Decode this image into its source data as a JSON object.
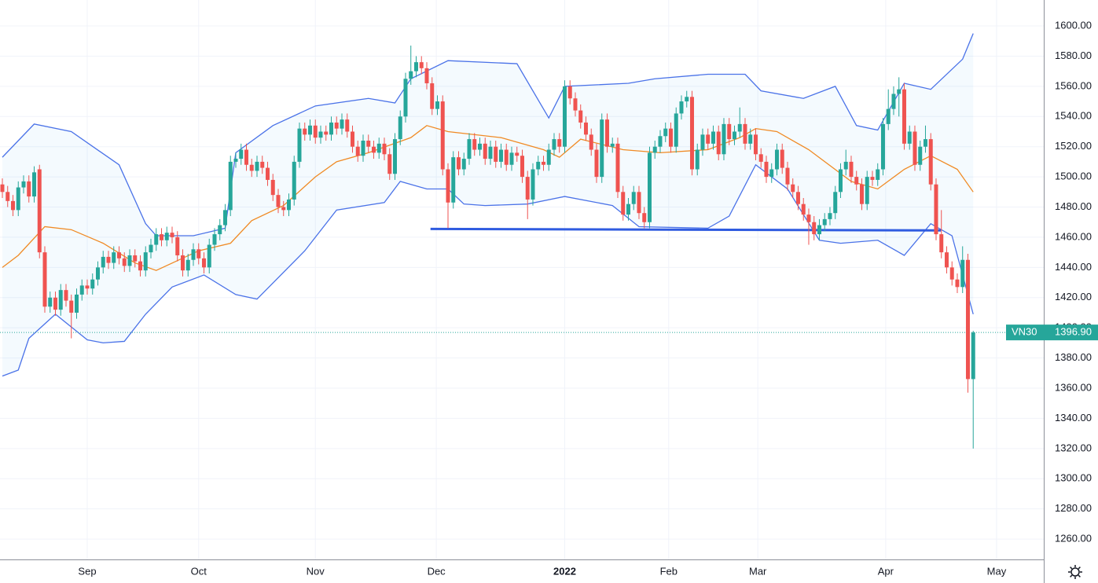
{
  "chart_data": {
    "type": "candlestick",
    "symbol": "VN30",
    "last_price": {
      "value": 1396.9,
      "label": "1396.90"
    },
    "up_color": "#26a69a",
    "down_color": "#ef5350",
    "band_color": "#4a72e8",
    "basis_color": "#f08a24",
    "band_fill": "rgba(33,150,243,0.05)",
    "support_color": "#2f5be0",
    "grid": true,
    "xlim": [
      -0.444,
      196.3
    ],
    "ylim": [
      1246.5,
      1617.2
    ],
    "xticks": [
      {
        "value": 16,
        "label": "Sep"
      },
      {
        "value": 37,
        "label": "Oct"
      },
      {
        "value": 59,
        "label": "Nov"
      },
      {
        "value": 81.8,
        "label": "Dec"
      },
      {
        "value": 106,
        "label": "2022",
        "bold": true
      },
      {
        "value": 125.6,
        "label": "Feb"
      },
      {
        "value": 142.4,
        "label": "Mar"
      },
      {
        "value": 166.5,
        "label": "Apr"
      },
      {
        "value": 187.4,
        "label": "May"
      }
    ],
    "yticks": [
      {
        "value": 1260,
        "label": "1260.00"
      },
      {
        "value": 1280,
        "label": "1280.00"
      },
      {
        "value": 1300,
        "label": "1300.00"
      },
      {
        "value": 1320,
        "label": "1320.00"
      },
      {
        "value": 1340,
        "label": "1340.00"
      },
      {
        "value": 1360,
        "label": "1360.00"
      },
      {
        "value": 1380,
        "label": "1380.00"
      },
      {
        "value": 1400,
        "label": "1400.00"
      },
      {
        "value": 1420,
        "label": "1420.00"
      },
      {
        "value": 1440,
        "label": "1440.00"
      },
      {
        "value": 1460,
        "label": "1460.00"
      },
      {
        "value": 1480,
        "label": "1480.00"
      },
      {
        "value": 1500,
        "label": "1500.00"
      },
      {
        "value": 1520,
        "label": "1520.00"
      },
      {
        "value": 1540,
        "label": "1540.00"
      },
      {
        "value": 1560,
        "label": "1560.00"
      },
      {
        "value": 1580,
        "label": "1580.00"
      },
      {
        "value": 1600,
        "label": "1600.00"
      }
    ],
    "support_line": {
      "x": [
        80.7,
        176.9
      ],
      "values": [
        1465.5,
        1464.5
      ]
    },
    "ohlc": [
      [
        1495,
        1499,
        1486,
        1490
      ],
      [
        1490,
        1494,
        1480,
        1484
      ],
      [
        1484,
        1488,
        1474,
        1478
      ],
      [
        1478,
        1497,
        1474,
        1493
      ],
      [
        1493,
        1501,
        1489,
        1497
      ],
      [
        1497,
        1501,
        1483,
        1487
      ],
      [
        1487,
        1507,
        1483,
        1503
      ],
      [
        1505,
        1508,
        1446,
        1450
      ],
      [
        1450,
        1454,
        1410,
        1414
      ],
      [
        1414,
        1424,
        1410,
        1420
      ],
      [
        1420,
        1424,
        1408,
        1412
      ],
      [
        1412,
        1429,
        1408,
        1425
      ],
      [
        1425,
        1429,
        1414,
        1418
      ],
      [
        1418,
        1422,
        1393,
        1410
      ],
      [
        1410,
        1426,
        1406,
        1422
      ],
      [
        1422,
        1432,
        1418,
        1428
      ],
      [
        1428,
        1432,
        1422,
        1426
      ],
      [
        1426,
        1436,
        1422,
        1432
      ],
      [
        1432,
        1444,
        1428,
        1440
      ],
      [
        1440,
        1451,
        1436,
        1447
      ],
      [
        1447,
        1451,
        1439,
        1443
      ],
      [
        1443,
        1454,
        1439,
        1450
      ],
      [
        1450,
        1454,
        1442,
        1446
      ],
      [
        1446,
        1450,
        1437,
        1441
      ],
      [
        1441,
        1452,
        1437,
        1448
      ],
      [
        1448,
        1452,
        1440,
        1444
      ],
      [
        1444,
        1448,
        1434,
        1438
      ],
      [
        1438,
        1454,
        1434,
        1450
      ],
      [
        1450,
        1459,
        1446,
        1455
      ],
      [
        1455,
        1466,
        1451,
        1462
      ],
      [
        1462,
        1466,
        1454,
        1458
      ],
      [
        1458,
        1467,
        1454,
        1463
      ],
      [
        1463,
        1467,
        1456,
        1460
      ],
      [
        1460,
        1464,
        1444,
        1448
      ],
      [
        1448,
        1452,
        1434,
        1438
      ],
      [
        1438,
        1449,
        1434,
        1445
      ],
      [
        1445,
        1456,
        1441,
        1452
      ],
      [
        1452,
        1456,
        1442,
        1446
      ],
      [
        1446,
        1450,
        1436,
        1440
      ],
      [
        1440,
        1459,
        1436,
        1455
      ],
      [
        1455,
        1466,
        1451,
        1462
      ],
      [
        1462,
        1472,
        1458,
        1468
      ],
      [
        1468,
        1482,
        1464,
        1478
      ],
      [
        1478,
        1514,
        1474,
        1510
      ],
      [
        1510,
        1516,
        1506,
        1512
      ],
      [
        1512,
        1522,
        1508,
        1518
      ],
      [
        1518,
        1522,
        1504,
        1508
      ],
      [
        1508,
        1512,
        1500,
        1504
      ],
      [
        1504,
        1514,
        1500,
        1510
      ],
      [
        1510,
        1514,
        1502,
        1506
      ],
      [
        1506,
        1510,
        1494,
        1498
      ],
      [
        1498,
        1502,
        1484,
        1488
      ],
      [
        1488,
        1492,
        1476,
        1480
      ],
      [
        1480,
        1484,
        1474,
        1478
      ],
      [
        1478,
        1489,
        1474,
        1485
      ],
      [
        1485,
        1514,
        1481,
        1510
      ],
      [
        1510,
        1536,
        1506,
        1532
      ],
      [
        1532,
        1536,
        1524,
        1528
      ],
      [
        1528,
        1538,
        1524,
        1534
      ],
      [
        1534,
        1538,
        1522,
        1526
      ],
      [
        1526,
        1534,
        1522,
        1530
      ],
      [
        1530,
        1534,
        1524,
        1528
      ],
      [
        1528,
        1540,
        1524,
        1536
      ],
      [
        1536,
        1540,
        1528,
        1532
      ],
      [
        1532,
        1542,
        1528,
        1538
      ],
      [
        1538,
        1542,
        1526,
        1530
      ],
      [
        1530,
        1534,
        1516,
        1520
      ],
      [
        1520,
        1524,
        1510,
        1514
      ],
      [
        1514,
        1528,
        1510,
        1524
      ],
      [
        1524,
        1528,
        1516,
        1520
      ],
      [
        1520,
        1524,
        1512,
        1516
      ],
      [
        1516,
        1526,
        1512,
        1522
      ],
      [
        1522,
        1526,
        1511,
        1515
      ],
      [
        1515,
        1519,
        1498,
        1502
      ],
      [
        1502,
        1529,
        1498,
        1525
      ],
      [
        1525,
        1544,
        1521,
        1540
      ],
      [
        1540,
        1569,
        1536,
        1565
      ],
      [
        1565,
        1587,
        1561,
        1570
      ],
      [
        1570,
        1580,
        1566,
        1576
      ],
      [
        1576,
        1580,
        1568,
        1572
      ],
      [
        1572,
        1576,
        1558,
        1562
      ],
      [
        1562,
        1566,
        1541,
        1545
      ],
      [
        1545,
        1554,
        1541,
        1550
      ],
      [
        1550,
        1554,
        1501,
        1505
      ],
      [
        1505,
        1509,
        1466,
        1483
      ],
      [
        1483,
        1517,
        1479,
        1513
      ],
      [
        1513,
        1517,
        1501,
        1505
      ],
      [
        1505,
        1516,
        1501,
        1512
      ],
      [
        1512,
        1529,
        1508,
        1525
      ],
      [
        1525,
        1529,
        1514,
        1518
      ],
      [
        1518,
        1526,
        1514,
        1522
      ],
      [
        1522,
        1526,
        1508,
        1512
      ],
      [
        1512,
        1524,
        1508,
        1520
      ],
      [
        1520,
        1524,
        1506,
        1510
      ],
      [
        1510,
        1522,
        1506,
        1518
      ],
      [
        1518,
        1522,
        1504,
        1508
      ],
      [
        1508,
        1520,
        1504,
        1516
      ],
      [
        1516,
        1520,
        1510,
        1514
      ],
      [
        1514,
        1518,
        1496,
        1500
      ],
      [
        1500,
        1504,
        1472,
        1485
      ],
      [
        1485,
        1509,
        1481,
        1505
      ],
      [
        1505,
        1514,
        1501,
        1510
      ],
      [
        1510,
        1514,
        1504,
        1508
      ],
      [
        1508,
        1522,
        1504,
        1518
      ],
      [
        1518,
        1529,
        1514,
        1525
      ],
      [
        1525,
        1529,
        1516,
        1520
      ],
      [
        1520,
        1564,
        1516,
        1560
      ],
      [
        1560,
        1564,
        1548,
        1552
      ],
      [
        1552,
        1556,
        1540,
        1544
      ],
      [
        1544,
        1548,
        1532,
        1536
      ],
      [
        1536,
        1540,
        1524,
        1528
      ],
      [
        1528,
        1532,
        1514,
        1518
      ],
      [
        1518,
        1522,
        1496,
        1500
      ],
      [
        1500,
        1542,
        1496,
        1538
      ],
      [
        1538,
        1542,
        1516,
        1520
      ],
      [
        1520,
        1526,
        1516,
        1522
      ],
      [
        1522,
        1526,
        1486,
        1490
      ],
      [
        1490,
        1494,
        1471,
        1475
      ],
      [
        1475,
        1486,
        1471,
        1482
      ],
      [
        1482,
        1494,
        1478,
        1490
      ],
      [
        1490,
        1494,
        1472,
        1476
      ],
      [
        1476,
        1480,
        1466,
        1470
      ],
      [
        1470,
        1520,
        1466,
        1516
      ],
      [
        1516,
        1524,
        1512,
        1520
      ],
      [
        1520,
        1531,
        1516,
        1527
      ],
      [
        1527,
        1536,
        1523,
        1532
      ],
      [
        1532,
        1536,
        1516,
        1520
      ],
      [
        1520,
        1546,
        1516,
        1542
      ],
      [
        1542,
        1554,
        1538,
        1550
      ],
      [
        1550,
        1557,
        1546,
        1553
      ],
      [
        1553,
        1557,
        1501,
        1505
      ],
      [
        1505,
        1522,
        1501,
        1518
      ],
      [
        1518,
        1532,
        1514,
        1528
      ],
      [
        1528,
        1532,
        1518,
        1522
      ],
      [
        1522,
        1534,
        1518,
        1530
      ],
      [
        1530,
        1534,
        1511,
        1515
      ],
      [
        1515,
        1539,
        1511,
        1535
      ],
      [
        1535,
        1539,
        1521,
        1525
      ],
      [
        1525,
        1534,
        1521,
        1530
      ],
      [
        1530,
        1546,
        1526,
        1535
      ],
      [
        1535,
        1539,
        1518,
        1522
      ],
      [
        1522,
        1532,
        1518,
        1528
      ],
      [
        1528,
        1532,
        1511,
        1515
      ],
      [
        1515,
        1519,
        1506,
        1510
      ],
      [
        1510,
        1514,
        1496,
        1500
      ],
      [
        1500,
        1509,
        1496,
        1505
      ],
      [
        1505,
        1522,
        1501,
        1518
      ],
      [
        1518,
        1522,
        1502,
        1506
      ],
      [
        1506,
        1510,
        1491,
        1495
      ],
      [
        1495,
        1499,
        1486,
        1490
      ],
      [
        1490,
        1494,
        1478,
        1482
      ],
      [
        1482,
        1486,
        1471,
        1475
      ],
      [
        1475,
        1479,
        1455,
        1470
      ],
      [
        1470,
        1474,
        1458,
        1462
      ],
      [
        1462,
        1472,
        1458,
        1468
      ],
      [
        1468,
        1476,
        1464,
        1472
      ],
      [
        1472,
        1480,
        1468,
        1476
      ],
      [
        1476,
        1494,
        1472,
        1490
      ],
      [
        1490,
        1509,
        1486,
        1505
      ],
      [
        1505,
        1518,
        1501,
        1510
      ],
      [
        1510,
        1514,
        1496,
        1500
      ],
      [
        1500,
        1504,
        1491,
        1495
      ],
      [
        1495,
        1499,
        1478,
        1482
      ],
      [
        1482,
        1504,
        1478,
        1500
      ],
      [
        1500,
        1504,
        1494,
        1498
      ],
      [
        1498,
        1509,
        1494,
        1505
      ],
      [
        1505,
        1539,
        1501,
        1535
      ],
      [
        1535,
        1558,
        1531,
        1545
      ],
      [
        1545,
        1560,
        1541,
        1555
      ],
      [
        1555,
        1566,
        1540,
        1558
      ],
      [
        1558,
        1562,
        1518,
        1522
      ],
      [
        1522,
        1534,
        1518,
        1530
      ],
      [
        1530,
        1534,
        1504,
        1508
      ],
      [
        1508,
        1524,
        1504,
        1520
      ],
      [
        1520,
        1534,
        1516,
        1525
      ],
      [
        1525,
        1529,
        1491,
        1495
      ],
      [
        1495,
        1499,
        1458,
        1462
      ],
      [
        1462,
        1478,
        1446,
        1450
      ],
      [
        1450,
        1454,
        1436,
        1440
      ],
      [
        1440,
        1444,
        1428,
        1432
      ],
      [
        1432,
        1436,
        1423,
        1427
      ],
      [
        1427,
        1454,
        1423,
        1445
      ],
      [
        1445,
        1449,
        1357,
        1366
      ],
      [
        1366,
        1398,
        1320,
        1396.9
      ]
    ],
    "bollinger": {
      "upper": {
        "x": [
          0,
          6,
          13,
          22,
          27,
          29,
          36,
          42,
          44,
          51,
          59,
          69,
          74,
          77,
          84,
          97,
          103,
          106,
          118,
          123,
          133,
          140,
          143,
          151,
          157,
          161,
          165,
          170,
          175,
          181,
          183
        ],
        "values": [
          1513,
          1535,
          1530,
          1508,
          1469,
          1461,
          1461,
          1466,
          1516,
          1534,
          1547,
          1552,
          1549,
          1565,
          1577,
          1575,
          1539,
          1560,
          1562,
          1565,
          1568,
          1568,
          1557,
          1552,
          1560,
          1534,
          1531,
          1562,
          1558,
          1578,
          1595
        ]
      },
      "middle": {
        "x": [
          0,
          3,
          8,
          13,
          19,
          25,
          29,
          37,
          43,
          47,
          53,
          59,
          63,
          69,
          77,
          80,
          84,
          94,
          102,
          105,
          109,
          117,
          124,
          133,
          139,
          142,
          146,
          152,
          160,
          165,
          170,
          175,
          180,
          183
        ],
        "values": [
          1440,
          1448,
          1467,
          1465,
          1456,
          1443,
          1438,
          1451,
          1456,
          1471,
          1481,
          1500,
          1510,
          1516,
          1526,
          1534,
          1530,
          1526,
          1518,
          1513,
          1525,
          1518,
          1516,
          1518,
          1526,
          1532,
          1530,
          1518,
          1497,
          1492,
          1505,
          1514,
          1505,
          1490
        ]
      },
      "lower": {
        "x": [
          0,
          3,
          5,
          10,
          16,
          19,
          23,
          27,
          32,
          38,
          44,
          48,
          57,
          63,
          72,
          75,
          80,
          84,
          87,
          91,
          99,
          106,
          115,
          120,
          133,
          137,
          142,
          148,
          154,
          158,
          165,
          170,
          175,
          179,
          183
        ],
        "values": [
          1368,
          1372,
          1393,
          1409,
          1392,
          1390,
          1391,
          1409,
          1427,
          1435,
          1422,
          1419,
          1451,
          1478,
          1483,
          1497,
          1492,
          1492,
          1482,
          1481,
          1482,
          1487,
          1481,
          1467,
          1466,
          1474,
          1508,
          1492,
          1458,
          1456,
          1458,
          1448,
          1469,
          1461,
          1409
        ]
      }
    }
  }
}
